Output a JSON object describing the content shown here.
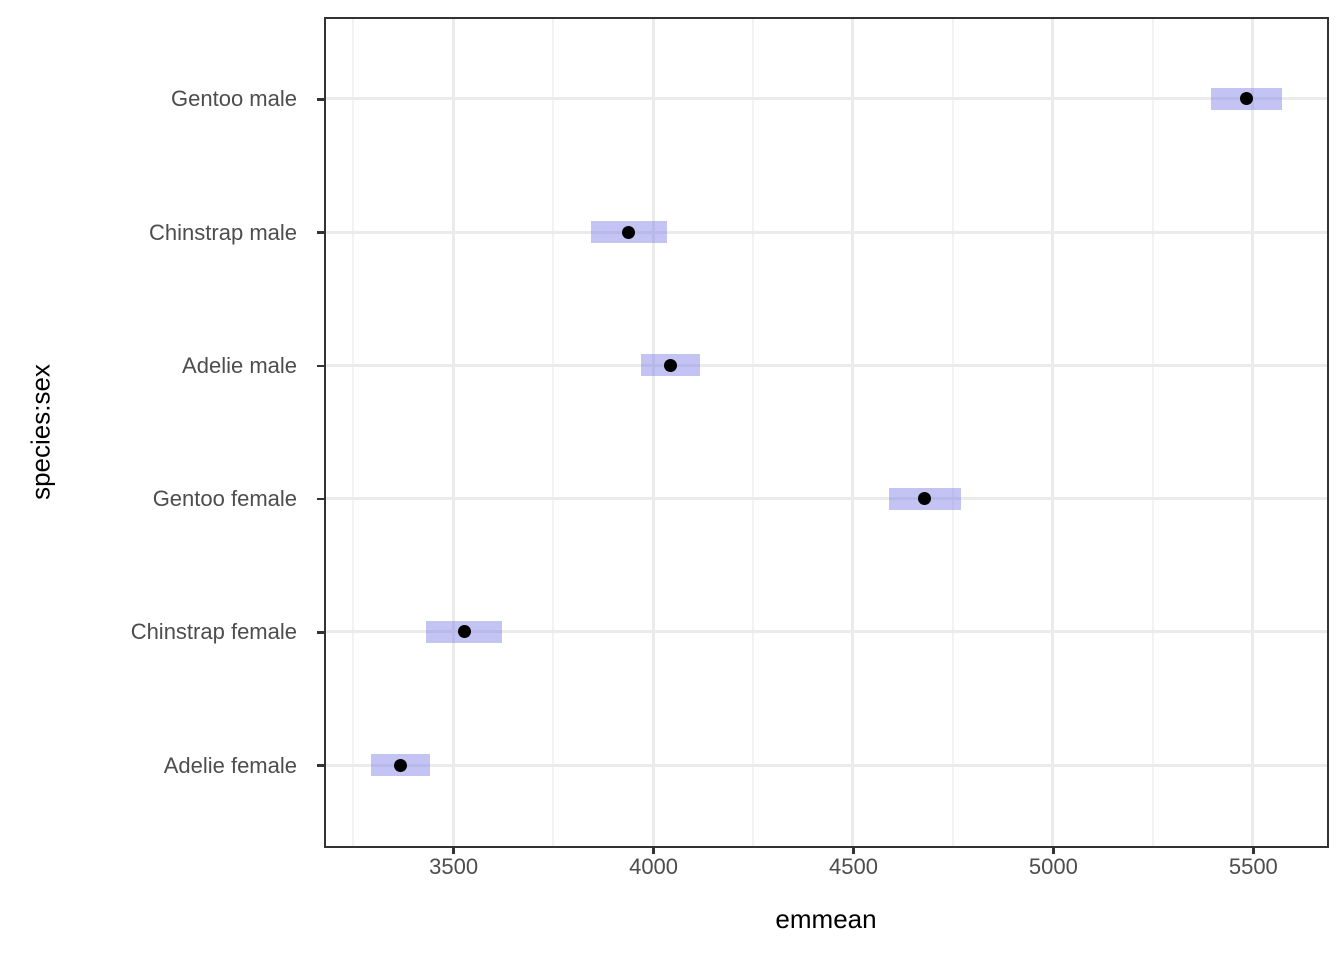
{
  "chart_data": {
    "type": "scatter",
    "subtype": "emmeans-pointrange-horizontal",
    "xlabel": "emmean",
    "ylabel": "species:sex",
    "xlim": [
      3182,
      5683
    ],
    "x_major_ticks": [
      3500,
      4000,
      4500,
      5000,
      5500
    ],
    "x_minor_gridlines": [
      3250,
      3750,
      4250,
      4750,
      5250
    ],
    "grid": true,
    "legend": "none",
    "categories_top_to_bottom": [
      "Gentoo male",
      "Chinstrap male",
      "Adelie male",
      "Gentoo female",
      "Chinstrap female",
      "Adelie female"
    ],
    "series": [
      {
        "label": "Gentoo male",
        "emmean": 5484.8,
        "lower_cl": 5396.1,
        "upper_cl": 5573.5
      },
      {
        "label": "Chinstrap male",
        "emmean": 3939.0,
        "lower_cl": 3844.3,
        "upper_cl": 4033.7
      },
      {
        "label": "Adelie male",
        "emmean": 4043.5,
        "lower_cl": 3969.0,
        "upper_cl": 4118.0
      },
      {
        "label": "Gentoo female",
        "emmean": 4679.7,
        "lower_cl": 4589.1,
        "upper_cl": 4770.4
      },
      {
        "label": "Chinstrap female",
        "emmean": 3527.2,
        "lower_cl": 3432.5,
        "upper_cl": 3621.9
      },
      {
        "label": "Adelie female",
        "emmean": 3368.8,
        "lower_cl": 3294.4,
        "upper_cl": 3443.3
      }
    ],
    "colors": {
      "ci_band": "rgba(121,121,231,0.45)",
      "point": "#000000",
      "grid_major": "#ebebeb",
      "grid_minor": "#f2f2f2",
      "panel_border": "#333333",
      "tick": "#333333",
      "tick_label": "#4d4d4d",
      "axis_title": "#000000",
      "background": "#ffffff"
    }
  }
}
